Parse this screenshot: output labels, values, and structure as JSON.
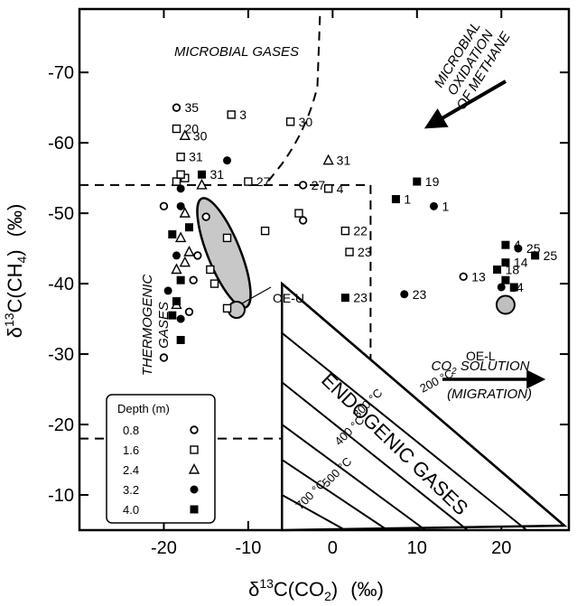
{
  "chart_data": {
    "type": "scatter",
    "x_axis": {
      "label_main": "δ",
      "label_sup": "13",
      "label_rest": "C(CO",
      "label_sub": "2",
      "label_close": ")",
      "unit": "(‰)",
      "min": -30,
      "max": 28,
      "ticks": [
        -20,
        -10,
        0,
        10,
        20
      ]
    },
    "y_axis": {
      "label_main": "δ",
      "label_sup": "13",
      "label_rest": "C(CH",
      "label_sub": "4",
      "label_close": ")",
      "unit": "(‰)",
      "min": -5,
      "max": -79,
      "ticks": [
        -70,
        -60,
        -50,
        -40,
        -30,
        -20,
        -10
      ]
    },
    "regions": {
      "microbial": "MICROBIAL GASES",
      "thermogenic_1": "THERMOGENIC",
      "thermogenic_2": "GASES",
      "endogenic": "ENDOGENIC GASES",
      "oxidation_1": "MICROBIAL",
      "oxidation_2": "OXIDATION",
      "oxidation_3": "OF METHANE",
      "co2_1": "CO",
      "co2_1_sub": "2",
      "co2_1_rest": " SOLUTION",
      "co2_2": "(MIGRATION)",
      "oe_u": "OE-U",
      "oe_l": "OE-L"
    },
    "temperatures": [
      "200 °C",
      "300 °C",
      "400 °C",
      "500 °C",
      "700 °C"
    ],
    "legend": {
      "title": "Depth (m)",
      "entries": [
        {
          "depth": "0.8",
          "marker": "open-circle"
        },
        {
          "depth": "1.6",
          "marker": "open-square"
        },
        {
          "depth": "2.4",
          "marker": "open-triangle"
        },
        {
          "depth": "3.2",
          "marker": "filled-circle"
        },
        {
          "depth": "4.0",
          "marker": "filled-square"
        }
      ]
    },
    "series": [
      {
        "depth": "0.8",
        "marker": "open-circle",
        "points": [
          {
            "x": -18.5,
            "y": -65,
            "label": "35"
          },
          {
            "x": -3.5,
            "y": -54,
            "label": "27"
          },
          {
            "x": -3.5,
            "y": -49
          },
          {
            "x": -20,
            "y": -51
          },
          {
            "x": -15,
            "y": -49.5
          },
          {
            "x": -16,
            "y": -44
          },
          {
            "x": -16.5,
            "y": -40.5
          },
          {
            "x": -17,
            "y": -36
          },
          {
            "x": -20,
            "y": -29.5
          },
          {
            "x": 15.5,
            "y": -41,
            "label": "13"
          }
        ]
      },
      {
        "depth": "1.6",
        "marker": "open-square",
        "points": [
          {
            "x": -12,
            "y": -64,
            "label": "3"
          },
          {
            "x": -5,
            "y": -63,
            "label": "30"
          },
          {
            "x": -18.5,
            "y": -62,
            "label": "20"
          },
          {
            "x": -18,
            "y": -58,
            "label": "31"
          },
          {
            "x": -17.5,
            "y": -55
          },
          {
            "x": -18.5,
            "y": -54.5
          },
          {
            "x": -10,
            "y": -54.5,
            "label": "27"
          },
          {
            "x": -0.5,
            "y": -53.5,
            "label": "4"
          },
          {
            "x": -4,
            "y": -50
          },
          {
            "x": -8,
            "y": -47.5
          },
          {
            "x": 1.5,
            "y": -47.5,
            "label": "22"
          },
          {
            "x": 2,
            "y": -44.5,
            "label": "23"
          },
          {
            "x": -12.5,
            "y": -46.5
          },
          {
            "x": -14.5,
            "y": -42
          },
          {
            "x": -14,
            "y": -40
          },
          {
            "x": -12.5,
            "y": -36.5
          },
          {
            "x": -18,
            "y": -55.5
          }
        ]
      },
      {
        "depth": "2.4",
        "marker": "open-triangle",
        "points": [
          {
            "x": -17.5,
            "y": -61,
            "label": "30"
          },
          {
            "x": -0.5,
            "y": -57.5,
            "label": "31"
          },
          {
            "x": -15.5,
            "y": -54
          },
          {
            "x": -17.5,
            "y": -50
          },
          {
            "x": -18,
            "y": -46.5
          },
          {
            "x": -17.5,
            "y": -43
          },
          {
            "x": -18.5,
            "y": -42
          },
          {
            "x": -18.5,
            "y": -37
          },
          {
            "x": -17,
            "y": -44.5
          }
        ]
      },
      {
        "depth": "3.2",
        "marker": "filled-circle",
        "points": [
          {
            "x": -12.5,
            "y": -57.5
          },
          {
            "x": -18,
            "y": -53.5
          },
          {
            "x": -18,
            "y": -51
          },
          {
            "x": -18.5,
            "y": -44
          },
          {
            "x": -19.5,
            "y": -39
          },
          {
            "x": -18,
            "y": -35
          },
          {
            "x": 12,
            "y": -51,
            "label": "1"
          },
          {
            "x": 8.5,
            "y": -38.5,
            "label": "23"
          },
          {
            "x": 22,
            "y": -45,
            "label": "25"
          },
          {
            "x": 20,
            "y": -39.5,
            "label": "24"
          }
        ]
      },
      {
        "depth": "4.0",
        "marker": "filled-square",
        "points": [
          {
            "x": -15.5,
            "y": -55.5,
            "label": "31"
          },
          {
            "x": 10,
            "y": -54.5,
            "label": "19"
          },
          {
            "x": 7.5,
            "y": -52,
            "label": "1"
          },
          {
            "x": 20.5,
            "y": -45.5,
            "label": "4"
          },
          {
            "x": 20.5,
            "y": -43,
            "label": "14"
          },
          {
            "x": 19.5,
            "y": -42,
            "label": "18"
          },
          {
            "x": 24,
            "y": -44,
            "label": "25"
          },
          {
            "x": 20.5,
            "y": -40.5
          },
          {
            "x": 21.5,
            "y": -39.5
          },
          {
            "x": 1.5,
            "y": -38,
            "label": "23"
          },
          {
            "x": -19,
            "y": -47
          },
          {
            "x": -18,
            "y": -40.5
          },
          {
            "x": -18.5,
            "y": -37.5
          },
          {
            "x": -19,
            "y": -35.5
          },
          {
            "x": -18,
            "y": -32
          },
          {
            "x": -17,
            "y": -48
          }
        ]
      }
    ],
    "boundaries": {
      "microbial_horizontal_y": -54,
      "microbial_horizontal_x": [
        -30,
        4.5
      ],
      "microbial_vertical_x": 4.5,
      "microbial_vertical_y": [
        -54,
        -18
      ],
      "bottom_dashed_y": -18,
      "bottom_dashed_x": [
        -30,
        4.5
      ],
      "upper_curve": [
        [
          -1.5,
          -78
        ],
        [
          -1.8,
          -68
        ],
        [
          -3,
          -62
        ],
        [
          -6,
          -57
        ],
        [
          -8,
          -54
        ]
      ]
    }
  }
}
